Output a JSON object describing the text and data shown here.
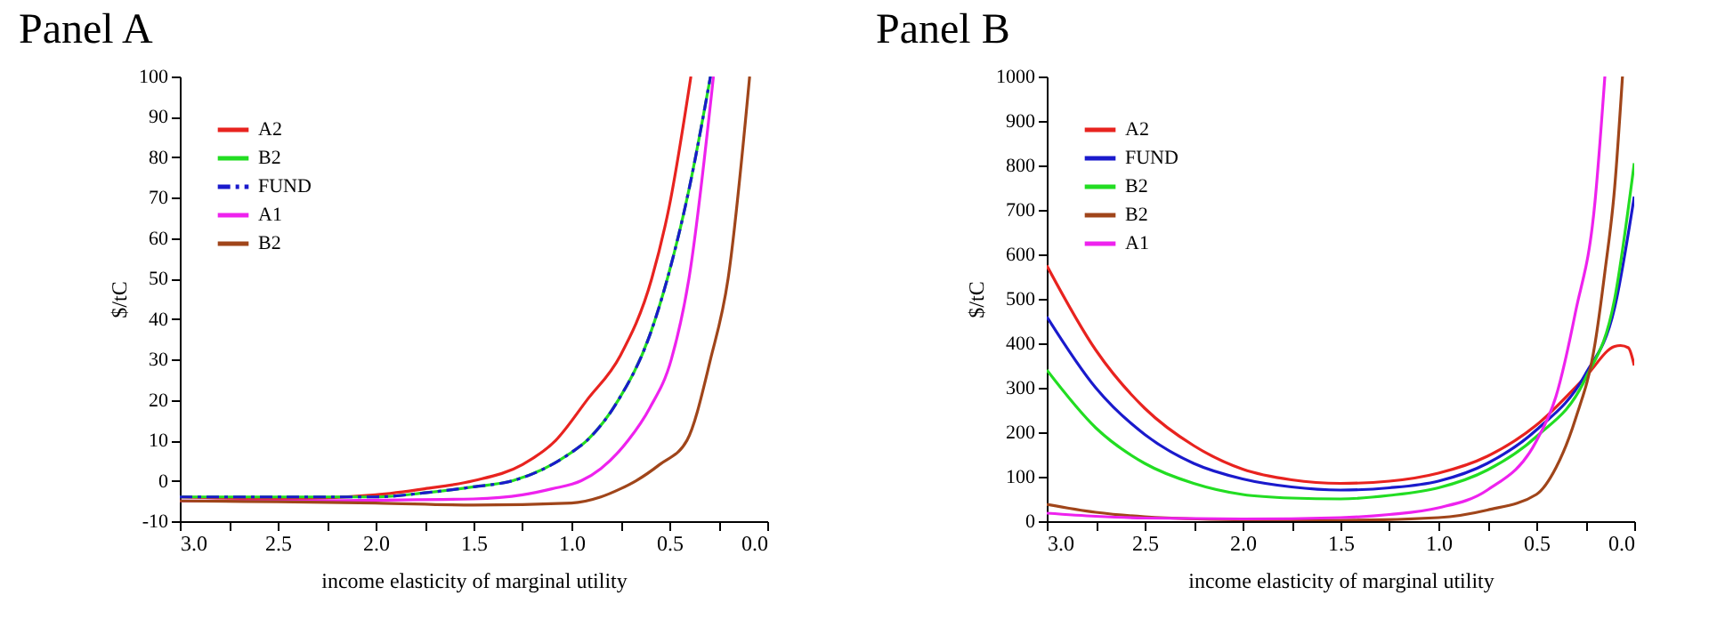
{
  "chart_data": [
    {
      "type": "line",
      "title": "Panel A",
      "xlabel": "income elasticity of marginal utility",
      "ylabel": "$/tC",
      "legend": "top left",
      "grid": false,
      "xlim": [
        3.0,
        0.0
      ],
      "xticks": [
        {
          "value": 3,
          "label": "3.0"
        },
        {
          "value": 2.75,
          "label": null
        },
        {
          "value": 2.5,
          "label": "2.5"
        },
        {
          "value": 2.25,
          "label": null
        },
        {
          "value": 2,
          "label": "2.0"
        },
        {
          "value": 1.75,
          "label": null
        },
        {
          "value": 1.5,
          "label": "1.5"
        },
        {
          "value": 1.25,
          "label": null
        },
        {
          "value": 1,
          "label": "1.0"
        },
        {
          "value": 0.75,
          "label": null
        },
        {
          "value": 0.5,
          "label": "0.5"
        },
        {
          "value": 0.25,
          "label": null
        },
        {
          "value": 0,
          "label": "0.0"
        }
      ],
      "ylim": [
        -10,
        100
      ],
      "yticks": [
        -10,
        0,
        10,
        20,
        30,
        40,
        50,
        60,
        70,
        80,
        90,
        100
      ],
      "series": [
        {
          "name": "A2",
          "color": "#e8231f",
          "line_style": "solid",
          "x": [
            3.0,
            2.5,
            2.0,
            1.75,
            1.5,
            1.25,
            1.08,
            0.92,
            0.75,
            0.59,
            0.5,
            0.39
          ],
          "values": [
            -4,
            -4.5,
            -3.5,
            -2,
            0,
            4,
            10,
            20,
            31,
            50,
            68,
            100
          ]
        },
        {
          "name": "B2",
          "color": "#22dd22",
          "line_style": "solid",
          "x": [
            3.0,
            2.5,
            2.0,
            1.75,
            1.5,
            1.3,
            1.0,
            0.92,
            0.76,
            0.6,
            0.51,
            0.4,
            0.29
          ],
          "values": [
            -4,
            -4,
            -4,
            -3,
            -1.5,
            0,
            7,
            10,
            20,
            36,
            50,
            72,
            100
          ]
        },
        {
          "name": "FUND",
          "color": "#1a1acc",
          "line_style": "dashed",
          "x": [
            3.0,
            2.5,
            2.0,
            1.75,
            1.5,
            1.3,
            1.0,
            0.92,
            0.76,
            0.6,
            0.51,
            0.4,
            0.29
          ],
          "values": [
            -4,
            -4,
            -4,
            -3,
            -1.5,
            0,
            7,
            10,
            20,
            36,
            50,
            72,
            100
          ]
        },
        {
          "name": "A1",
          "color": "#ee22ee",
          "line_style": "solid",
          "x": [
            3.0,
            2.5,
            2.0,
            1.5,
            1.25,
            1.1,
            0.95,
            0.85,
            0.71,
            0.6,
            0.49,
            0.4,
            0.275
          ],
          "values": [
            -5,
            -5,
            -4.8,
            -4.5,
            -3.5,
            -2,
            0,
            3,
            10,
            18,
            30,
            50,
            100
          ]
        },
        {
          "name": "B2",
          "color": "#a0451a",
          "line_style": "solid",
          "x": [
            3.0,
            2.5,
            2.0,
            1.5,
            1.0,
            0.85,
            0.75,
            0.67,
            0.55,
            0.41,
            0.29,
            0.2,
            0.09
          ],
          "values": [
            -5,
            -5.2,
            -5.5,
            -6,
            -5.5,
            -4,
            -2,
            0,
            4,
            10,
            30,
            50,
            100
          ]
        }
      ]
    },
    {
      "type": "line",
      "title": "Panel B",
      "xlabel": "income elasticity of marginal utility",
      "ylabel": "$/tC",
      "legend": "top left",
      "grid": false,
      "xlim": [
        3.0,
        0.0
      ],
      "xticks": [
        {
          "value": 3,
          "label": "3.0"
        },
        {
          "value": 2.75,
          "label": null
        },
        {
          "value": 2.5,
          "label": "2.5"
        },
        {
          "value": 2.25,
          "label": null
        },
        {
          "value": 2,
          "label": "2.0"
        },
        {
          "value": 1.75,
          "label": null
        },
        {
          "value": 1.5,
          "label": "1.5"
        },
        {
          "value": 1.25,
          "label": null
        },
        {
          "value": 1,
          "label": "1.0"
        },
        {
          "value": 0.75,
          "label": null
        },
        {
          "value": 0.5,
          "label": "0.5"
        },
        {
          "value": 0.25,
          "label": null
        },
        {
          "value": 0,
          "label": "0.0"
        }
      ],
      "ylim": [
        0,
        1000
      ],
      "yticks": [
        0,
        100,
        200,
        300,
        400,
        500,
        600,
        700,
        800,
        900,
        1000
      ],
      "series": [
        {
          "name": "A2",
          "color": "#e8231f",
          "x": [
            3.0,
            2.75,
            2.5,
            2.25,
            2.0,
            1.75,
            1.5,
            1.25,
            1.0,
            0.75,
            0.5,
            0.25,
            0.1,
            0.07,
            0.03,
            0.0
          ],
          "values": [
            575,
            385,
            254,
            170,
            117,
            93,
            85,
            90,
            108,
            146,
            216,
            324,
            393,
            395,
            390,
            350
          ]
        },
        {
          "name": "FUND",
          "color": "#1a1acc",
          "x": [
            3.0,
            2.75,
            2.5,
            2.25,
            2.0,
            1.75,
            1.5,
            1.25,
            1.0,
            0.75,
            0.5,
            0.25,
            0.1,
            0.0
          ],
          "values": [
            460,
            300,
            195,
            130,
            95,
            77,
            70,
            75,
            90,
            130,
            205,
            330,
            480,
            730
          ]
        },
        {
          "name": "B2",
          "color": "#22dd22",
          "x": [
            3.0,
            2.75,
            2.5,
            2.25,
            2.0,
            1.75,
            1.5,
            1.25,
            1.0,
            0.75,
            0.5,
            0.25,
            0.1,
            0.0
          ],
          "values": [
            340,
            210,
            130,
            85,
            60,
            52,
            50,
            58,
            75,
            115,
            190,
            320,
            500,
            805
          ]
        },
        {
          "name": "B2",
          "color": "#a0451a",
          "x": [
            3.0,
            2.75,
            2.5,
            2.0,
            1.5,
            1.0,
            0.75,
            0.5,
            0.4,
            0.3,
            0.2,
            0.15,
            0.1,
            0.06
          ],
          "values": [
            38,
            20,
            10,
            3,
            2,
            8,
            25,
            60,
            120,
            230,
            400,
            560,
            750,
            1000
          ]
        },
        {
          "name": "A1",
          "color": "#ee22ee",
          "x": [
            3.0,
            2.75,
            2.5,
            2.0,
            1.5,
            1.25,
            1.0,
            0.75,
            0.5,
            0.4,
            0.3,
            0.2,
            0.15
          ],
          "values": [
            18,
            11,
            7,
            5,
            8,
            15,
            30,
            70,
            180,
            280,
            470,
            720,
            1000
          ]
        }
      ]
    }
  ]
}
